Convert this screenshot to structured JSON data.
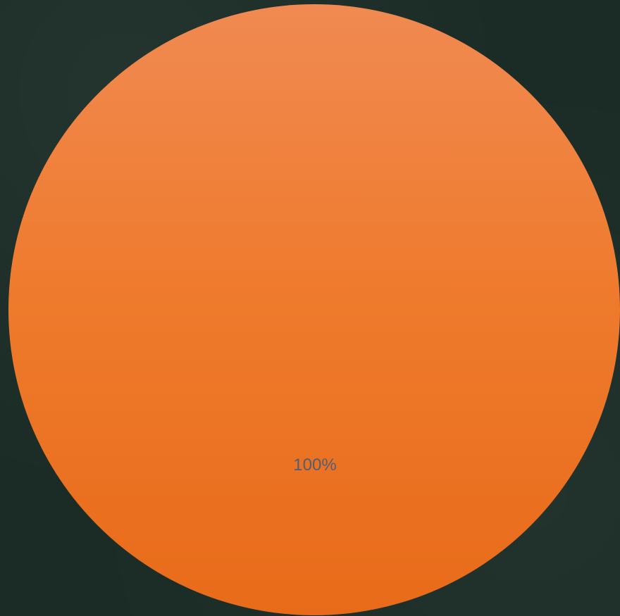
{
  "chart_data": {
    "type": "pie",
    "slices": [
      {
        "value": 100,
        "label": "100%",
        "color": "#ee7628"
      }
    ],
    "title": "",
    "legend": "none"
  },
  "colors": {
    "background": "#1b2c26",
    "slice_top": "#f08a52",
    "slice_bottom": "#e96a18",
    "label_text": "#4f5f73"
  }
}
